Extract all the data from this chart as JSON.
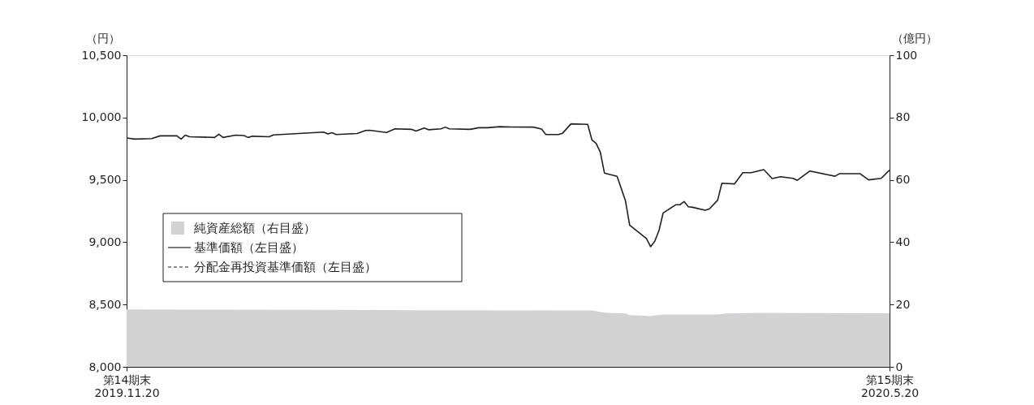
{
  "chart_data": {
    "type": "line",
    "ylabel": "（円）",
    "y2label": "（億円）",
    "xlim": [
      "2019-11-20",
      "2020-05-20"
    ],
    "xticks": [
      {
        "value": "2019-11-20",
        "label": "第14期末\n2019.11.20"
      },
      {
        "value": "2020-05-20",
        "label": "第15期末\n2020.5.20"
      }
    ],
    "ylim": [
      8000,
      10500
    ],
    "yticks": [
      {
        "value": 8000,
        "label": "8,000"
      },
      {
        "value": 8500,
        "label": "8,500"
      },
      {
        "value": 9000,
        "label": "9,000"
      },
      {
        "value": 9500,
        "label": "9,500"
      },
      {
        "value": 10000,
        "label": "10,000"
      },
      {
        "value": 10500,
        "label": "10,500"
      }
    ],
    "y2lim": [
      0,
      100
    ],
    "y2ticks": [
      0,
      20,
      40,
      60,
      80,
      100
    ],
    "grid": false,
    "legend": "left",
    "marker": "none",
    "series": [
      {
        "name": "純資産総額（右目盛）",
        "type": "area",
        "axis": "y2",
        "color": "#d1d2d4",
        "x": [
          "2019-11-20",
          "2020-01-22",
          "2020-03-10",
          "2020-03-13",
          "2020-03-18",
          "2020-03-19",
          "2020-03-24",
          "2020-03-27",
          "2020-04-09",
          "2020-04-11",
          "2020-04-19",
          "2020-05-20"
        ],
        "values": [
          18.4,
          18.2,
          18.1,
          17.4,
          17.1,
          16.6,
          16.3,
          16.8,
          16.8,
          17.1,
          17.3,
          17.2
        ]
      },
      {
        "name": "基準価額（左目盛）",
        "line_style": "solid",
        "color": "#231f20",
        "x": [
          "2019-11-20",
          "2019-11-22",
          "2019-11-26",
          "2019-11-28",
          "2019-12-02",
          "2019-12-03",
          "2019-12-04",
          "2019-12-05",
          "2019-12-11",
          "2019-12-12",
          "2019-12-13",
          "2019-12-16",
          "2019-12-18",
          "2019-12-19",
          "2019-12-20",
          "2019-12-24",
          "2019-12-25",
          "2020-01-06",
          "2020-01-07",
          "2020-01-08",
          "2020-01-09",
          "2020-01-14",
          "2020-01-16",
          "2020-01-17",
          "2020-01-21",
          "2020-01-23",
          "2020-01-27",
          "2020-01-28",
          "2020-01-30",
          "2020-01-31",
          "2020-02-03",
          "2020-02-04",
          "2020-02-05",
          "2020-02-10",
          "2020-02-12",
          "2020-02-14",
          "2020-02-17",
          "2020-02-20",
          "2020-02-25",
          "2020-02-27",
          "2020-02-28",
          "2020-03-02",
          "2020-03-03",
          "2020-03-05",
          "2020-03-09",
          "2020-03-10",
          "2020-03-11",
          "2020-03-12",
          "2020-03-13",
          "2020-03-16",
          "2020-03-18",
          "2020-03-19",
          "2020-03-23",
          "2020-03-24",
          "2020-03-25",
          "2020-03-26",
          "2020-03-27",
          "2020-03-30",
          "2020-03-31",
          "2020-04-01",
          "2020-04-02",
          "2020-04-03",
          "2020-04-06",
          "2020-04-07",
          "2020-04-09",
          "2020-04-10",
          "2020-04-13",
          "2020-04-15",
          "2020-04-17",
          "2020-04-20",
          "2020-04-22",
          "2020-04-24",
          "2020-04-27",
          "2020-04-28",
          "2020-05-01",
          "2020-05-07",
          "2020-05-08",
          "2020-05-13",
          "2020-05-15",
          "2020-05-18",
          "2020-05-20"
        ],
        "values": [
          9836,
          9827,
          9831,
          9853,
          9853,
          9827,
          9859,
          9846,
          9840,
          9866,
          9840,
          9859,
          9855,
          9840,
          9850,
          9846,
          9860,
          9883,
          9868,
          9878,
          9864,
          9872,
          9896,
          9898,
          9880,
          9909,
          9905,
          9892,
          9916,
          9902,
          9909,
          9923,
          9909,
          9905,
          9918,
          9918,
          9926,
          9924,
          9923,
          9908,
          9864,
          9864,
          9874,
          9949,
          9945,
          9821,
          9793,
          9723,
          9554,
          9528,
          9333,
          9137,
          9029,
          8964,
          9007,
          9094,
          9235,
          9300,
          9300,
          9326,
          9284,
          9280,
          9257,
          9266,
          9337,
          9473,
          9467,
          9558,
          9558,
          9582,
          9510,
          9525,
          9512,
          9496,
          9571,
          9529,
          9549,
          9549,
          9500,
          9512,
          9578
        ]
      },
      {
        "name": "分配金再投資基準価額（左目盛）",
        "line_style": "dashed",
        "color": "#231f20"
      }
    ]
  }
}
